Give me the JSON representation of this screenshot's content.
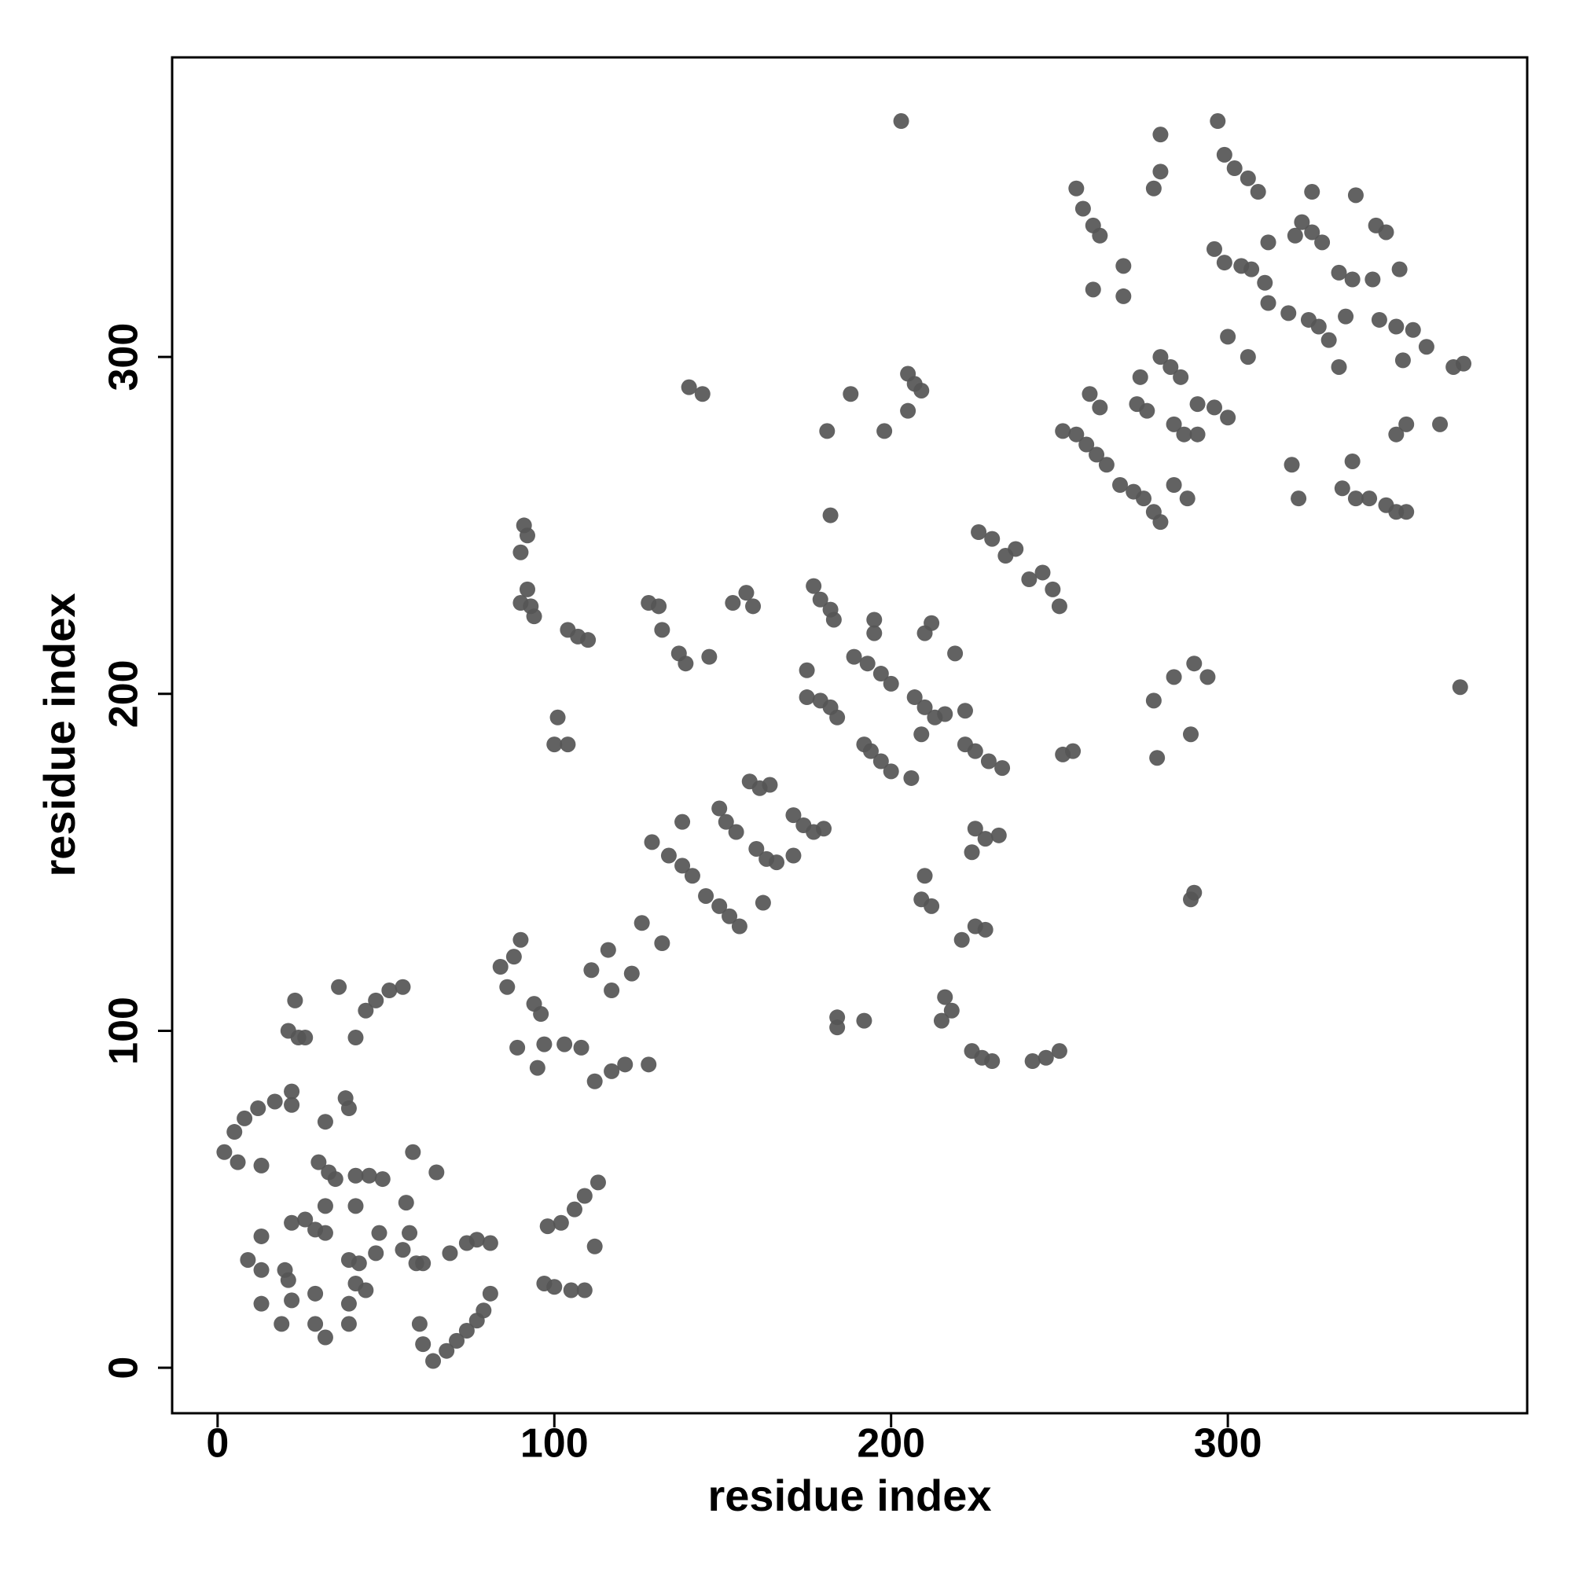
{
  "chart_data": {
    "type": "scatter",
    "x_label": "residue index",
    "y_label": "residue index",
    "color": "#555555",
    "xlim": [
      -13.5,
      388.9
    ],
    "ylim": [
      -13.5,
      388.9
    ],
    "xticks": [
      0,
      100,
      200,
      300
    ],
    "yticks": [
      0,
      100,
      200,
      300
    ],
    "x": [
      2,
      5,
      8,
      6,
      13,
      12,
      17,
      22,
      22,
      9,
      13,
      13,
      20,
      21,
      13,
      19,
      22,
      29,
      29,
      32,
      39,
      39,
      22,
      26,
      29,
      32,
      30,
      33,
      35,
      32,
      41,
      32,
      38,
      39,
      36,
      39,
      42,
      41,
      44,
      47,
      48,
      45,
      49,
      41,
      56,
      57,
      55,
      59,
      61,
      58,
      65,
      60,
      61,
      64,
      68,
      71,
      74,
      77,
      79,
      81,
      69,
      74,
      77,
      81,
      41,
      44,
      47,
      51,
      55,
      24,
      23,
      26,
      21,
      98,
      102,
      106,
      109,
      113,
      112,
      97,
      100,
      105,
      109,
      84,
      88,
      90,
      86,
      94,
      96,
      89,
      95,
      97,
      103,
      108,
      112,
      117,
      121,
      128,
      111,
      117,
      116,
      123,
      126,
      132,
      129,
      134,
      138,
      141,
      138,
      145,
      149,
      152,
      155,
      149,
      151,
      154,
      158,
      161,
      164,
      160,
      163,
      166,
      162,
      171,
      174,
      177,
      180,
      171,
      175,
      179,
      182,
      184,
      175,
      192,
      194,
      197,
      200,
      200,
      197,
      193,
      189,
      195,
      195,
      206,
      207,
      210,
      213,
      216,
      222,
      209,
      212,
      210,
      219,
      222,
      225,
      229,
      233,
      210,
      209,
      212,
      221,
      225,
      228,
      224,
      228,
      232,
      225,
      216,
      218,
      215,
      224,
      227,
      230,
      242,
      246,
      250,
      184,
      184,
      192,
      101,
      100,
      104,
      104,
      107,
      110,
      91,
      92,
      90,
      90,
      92,
      94,
      93,
      128,
      131,
      132,
      137,
      139,
      146,
      153,
      157,
      159,
      177,
      179,
      182,
      183,
      182,
      181,
      188,
      198,
      205,
      207,
      209,
      205,
      203,
      140,
      144,
      226,
      230,
      234,
      237,
      241,
      245,
      248,
      250,
      251,
      254,
      251,
      255,
      258,
      261,
      264,
      259,
      262,
      268,
      272,
      275,
      278,
      280,
      273,
      276,
      274,
      280,
      283,
      286,
      284,
      287,
      291,
      284,
      288,
      284,
      290,
      294,
      278,
      279,
      289,
      290,
      289,
      291,
      296,
      300,
      255,
      257,
      260,
      262,
      260,
      269,
      269,
      278,
      280,
      280,
      297,
      299,
      302,
      306,
      309,
      299,
      304,
      307,
      311,
      312,
      300,
      306,
      296,
      312,
      322,
      325,
      328,
      325,
      318,
      324,
      327,
      330,
      333,
      320,
      333,
      337,
      343,
      351,
      335,
      345,
      350,
      355,
      352,
      359,
      338,
      344,
      347,
      367,
      370,
      363,
      353,
      350,
      319,
      321,
      334,
      338,
      342,
      347,
      350,
      353,
      337,
      369
    ],
    "y": [
      64,
      70,
      74,
      61,
      60,
      77,
      79,
      82,
      78,
      32,
      39,
      29,
      29,
      26,
      19,
      13,
      20,
      22,
      13,
      9,
      13,
      19,
      43,
      44,
      41,
      40,
      61,
      58,
      56,
      48,
      48,
      73,
      80,
      77,
      113,
      32,
      31,
      25,
      23,
      34,
      40,
      57,
      56,
      57,
      49,
      40,
      35,
      31,
      31,
      64,
      58,
      13,
      7,
      2,
      5,
      8,
      11,
      14,
      17,
      22,
      34,
      37,
      38,
      37,
      98,
      106,
      109,
      112,
      113,
      98,
      109,
      98,
      100,
      42,
      43,
      47,
      51,
      55,
      36,
      25,
      24,
      23,
      23,
      119,
      122,
      127,
      113,
      108,
      105,
      95,
      89,
      96,
      96,
      95,
      85,
      88,
      90,
      90,
      118,
      112,
      124,
      117,
      132,
      126,
      156,
      152,
      149,
      146,
      162,
      140,
      137,
      134,
      131,
      166,
      162,
      159,
      174,
      172,
      173,
      154,
      151,
      150,
      138,
      164,
      161,
      159,
      160,
      152,
      199,
      198,
      196,
      193,
      207,
      185,
      183,
      180,
      177,
      203,
      206,
      209,
      211,
      218,
      222,
      175,
      199,
      196,
      193,
      194,
      195,
      188,
      221,
      218,
      212,
      185,
      183,
      180,
      178,
      146,
      139,
      137,
      127,
      131,
      130,
      153,
      157,
      158,
      160,
      110,
      106,
      103,
      94,
      92,
      91,
      91,
      92,
      94,
      104,
      101,
      103,
      193,
      185,
      185,
      219,
      217,
      216,
      250,
      247,
      242,
      227,
      231,
      223,
      226,
      227,
      226,
      219,
      212,
      209,
      211,
      227,
      230,
      226,
      232,
      228,
      225,
      222,
      253,
      278,
      289,
      278,
      295,
      292,
      290,
      284,
      370,
      291,
      289,
      248,
      246,
      241,
      243,
      234,
      236,
      231,
      226,
      182,
      183,
      278,
      277,
      274,
      271,
      268,
      289,
      285,
      262,
      260,
      258,
      254,
      251,
      286,
      284,
      294,
      300,
      297,
      294,
      280,
      277,
      277,
      262,
      258,
      205,
      209,
      205,
      198,
      181,
      188,
      141,
      139,
      286,
      285,
      282,
      350,
      344,
      339,
      336,
      320,
      318,
      327,
      350,
      355,
      366,
      370,
      360,
      356,
      353,
      349,
      328,
      327,
      326,
      322,
      316,
      306,
      300,
      332,
      334,
      340,
      337,
      334,
      349,
      313,
      311,
      309,
      305,
      297,
      336,
      325,
      323,
      323,
      326,
      312,
      311,
      309,
      308,
      299,
      303,
      348,
      339,
      337,
      297,
      298,
      280,
      280,
      277,
      268,
      258,
      261,
      258,
      258,
      256,
      254,
      254,
      269,
      202
    ]
  }
}
